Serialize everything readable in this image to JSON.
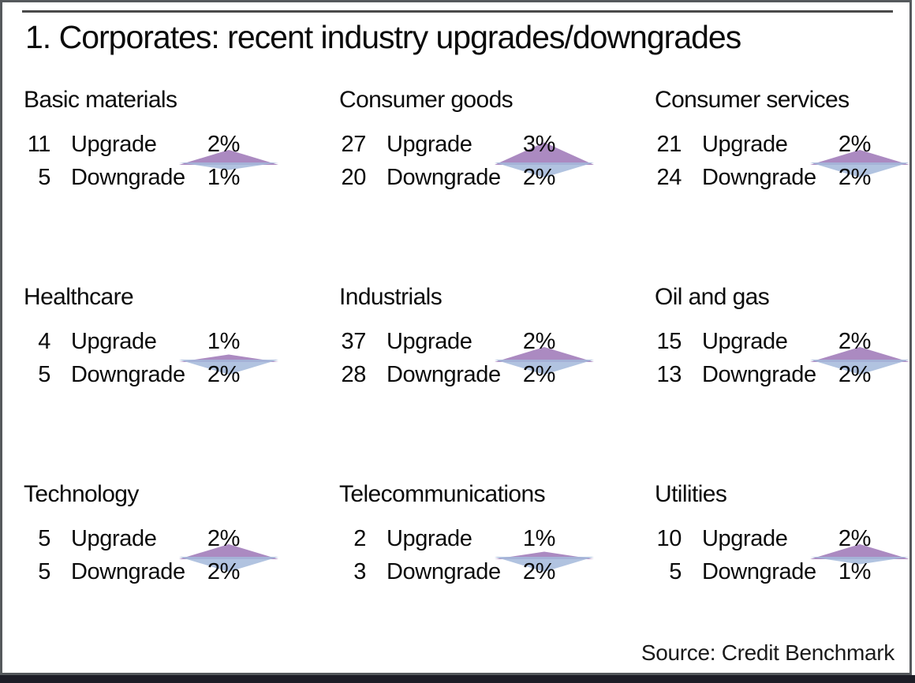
{
  "title": "1. Corporates: recent industry upgrades/downgrades",
  "source": "Source: Credit Benchmark",
  "labels": {
    "upgrade": "Upgrade",
    "downgrade": "Downgrade"
  },
  "colors": {
    "upgrade_triangle": "#ab8ac1",
    "downgrade_triangle": "#a3b9db",
    "frame": "#55595c",
    "bottom_strip": "#1d1d26",
    "text": "#0b0b0b"
  },
  "chart_data": {
    "type": "table",
    "title": "1. Corporates: recent industry upgrades/downgrades",
    "legend_note": "diamond marker: purple up-triangle height proportional to upgrade %, blue down-triangle height proportional to downgrade %",
    "panels": [
      {
        "industry": "Basic materials",
        "upgrade_count": "11",
        "upgrade_pct": "2%",
        "upgrade_pct_value": 2,
        "downgrade_count": "5",
        "downgrade_pct": "1%",
        "downgrade_pct_value": 1
      },
      {
        "industry": "Consumer goods",
        "upgrade_count": "27",
        "upgrade_pct": "3%",
        "upgrade_pct_value": 3,
        "downgrade_count": "20",
        "downgrade_pct": "2%",
        "downgrade_pct_value": 2
      },
      {
        "industry": "Consumer services",
        "upgrade_count": "21",
        "upgrade_pct": "2%",
        "upgrade_pct_value": 2,
        "downgrade_count": "24",
        "downgrade_pct": "2%",
        "downgrade_pct_value": 2
      },
      {
        "industry": "Healthcare",
        "upgrade_count": "4",
        "upgrade_pct": "1%",
        "upgrade_pct_value": 1,
        "downgrade_count": "5",
        "downgrade_pct": "2%",
        "downgrade_pct_value": 2
      },
      {
        "industry": "Industrials",
        "upgrade_count": "37",
        "upgrade_pct": "2%",
        "upgrade_pct_value": 2,
        "downgrade_count": "28",
        "downgrade_pct": "2%",
        "downgrade_pct_value": 2
      },
      {
        "industry": "Oil and gas",
        "upgrade_count": "15",
        "upgrade_pct": "2%",
        "upgrade_pct_value": 2,
        "downgrade_count": "13",
        "downgrade_pct": "2%",
        "downgrade_pct_value": 2
      },
      {
        "industry": "Technology",
        "upgrade_count": "5",
        "upgrade_pct": "2%",
        "upgrade_pct_value": 2,
        "downgrade_count": "5",
        "downgrade_pct": "2%",
        "downgrade_pct_value": 2
      },
      {
        "industry": "Telecommunications",
        "upgrade_count": "2",
        "upgrade_pct": "1%",
        "upgrade_pct_value": 1,
        "downgrade_count": "3",
        "downgrade_pct": "2%",
        "downgrade_pct_value": 2
      },
      {
        "industry": "Utilities",
        "upgrade_count": "10",
        "upgrade_pct": "2%",
        "upgrade_pct_value": 2,
        "downgrade_count": "5",
        "downgrade_pct": "1%",
        "downgrade_pct_value": 1
      }
    ]
  }
}
